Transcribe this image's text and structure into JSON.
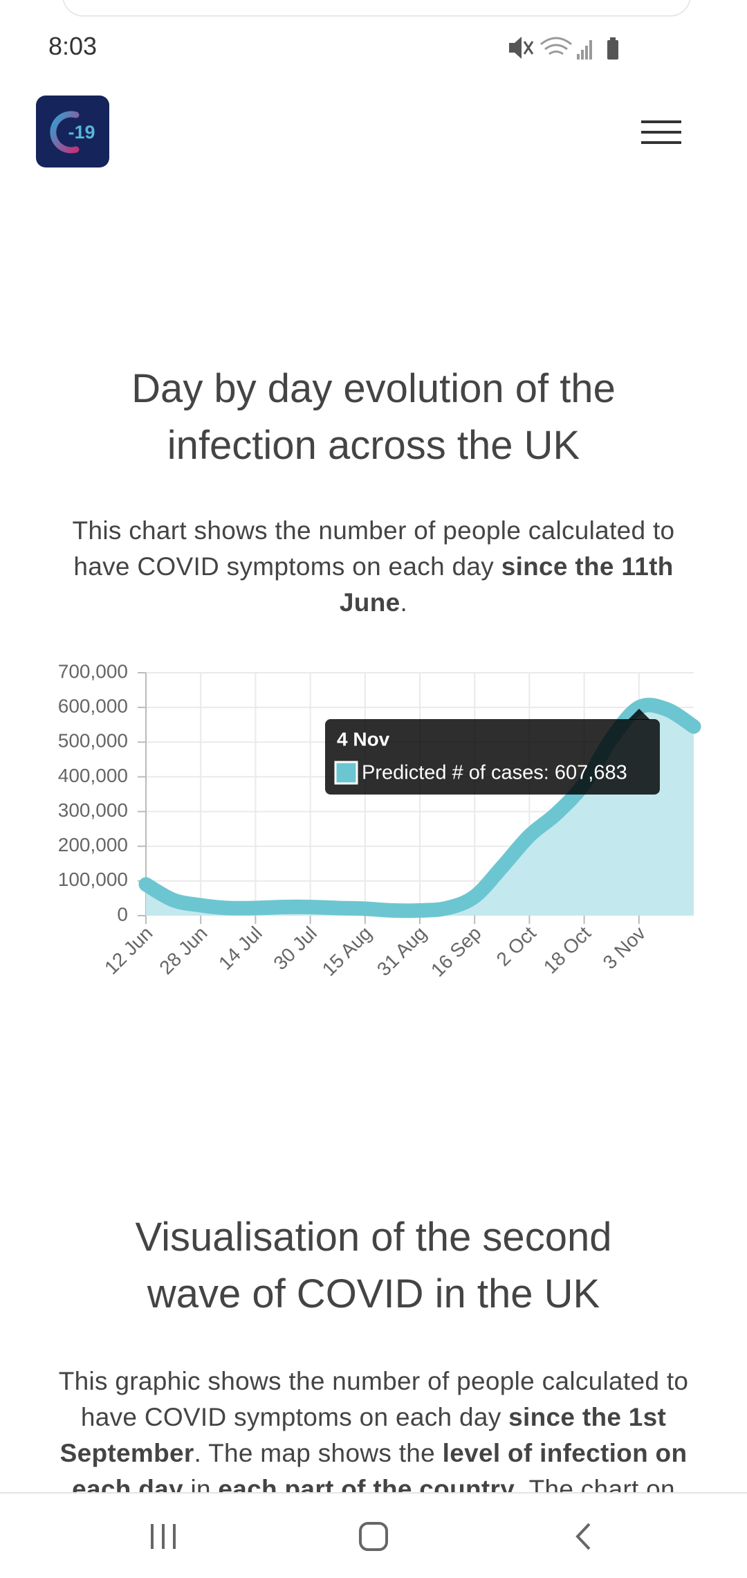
{
  "status_bar": {
    "time": "8:03"
  },
  "header": {
    "logo_text": "-19"
  },
  "section_1": {
    "title": [
      "Day by day evolution of the",
      "infection across the UK"
    ],
    "paragraph": [
      {
        "text": "This chart shows the number of people calculated to have COVID symptoms on each day ",
        "bold": false
      },
      {
        "text": "since the 11th June",
        "bold": true
      },
      {
        "text": ".",
        "bold": false
      }
    ]
  },
  "chart_data": {
    "type": "line",
    "area": true,
    "color": "#6cc6d1",
    "fill": "#c3e8ee",
    "grid": true,
    "categories": [
      "12 Jun",
      null,
      "28 Jun",
      null,
      "14 Jul",
      null,
      "30 Jul",
      null,
      "15 Aug",
      null,
      "31 Aug",
      null,
      "16 Sep",
      null,
      "2 Oct",
      null,
      "18 Oct",
      null,
      "3 Nov",
      null,
      null
    ],
    "values": [
      90000,
      45000,
      30000,
      22000,
      22000,
      25000,
      25000,
      22000,
      20000,
      15000,
      15000,
      22000,
      55000,
      140000,
      230000,
      295000,
      380000,
      510000,
      600000,
      595000,
      545000
    ],
    "ylim": [
      0,
      700000
    ],
    "yticks": [
      0,
      {
        "value": 100000,
        "label": "100,000"
      },
      {
        "value": 200000,
        "label": "200,000"
      },
      {
        "value": 300000,
        "label": "300,000"
      },
      {
        "value": 400000,
        "label": "400,000"
      },
      {
        "value": 500000,
        "label": "500,000"
      },
      {
        "value": 600000,
        "label": "600,000"
      },
      {
        "value": 700000,
        "label": "700,000"
      }
    ],
    "tooltip": {
      "title": "4 Nov",
      "label": "Predicted # of cases: 607,683"
    }
  },
  "section_2": {
    "title": [
      "Visualisation of the second",
      "wave of COVID in the UK"
    ],
    "paragraph": [
      {
        "text": "This graphic shows the number of people calculated to have COVID symptoms on each day ",
        "bold": false
      },
      {
        "text": "since the 1st September",
        "bold": true
      },
      {
        "text": ". The map shows the ",
        "bold": false
      },
      {
        "text": "level of infection on each day",
        "bold": true
      },
      {
        "text": " in ",
        "bold": false
      },
      {
        "text": "each part of the country",
        "bold": true
      },
      {
        "text": ". The chart on",
        "bold": false
      }
    ]
  }
}
